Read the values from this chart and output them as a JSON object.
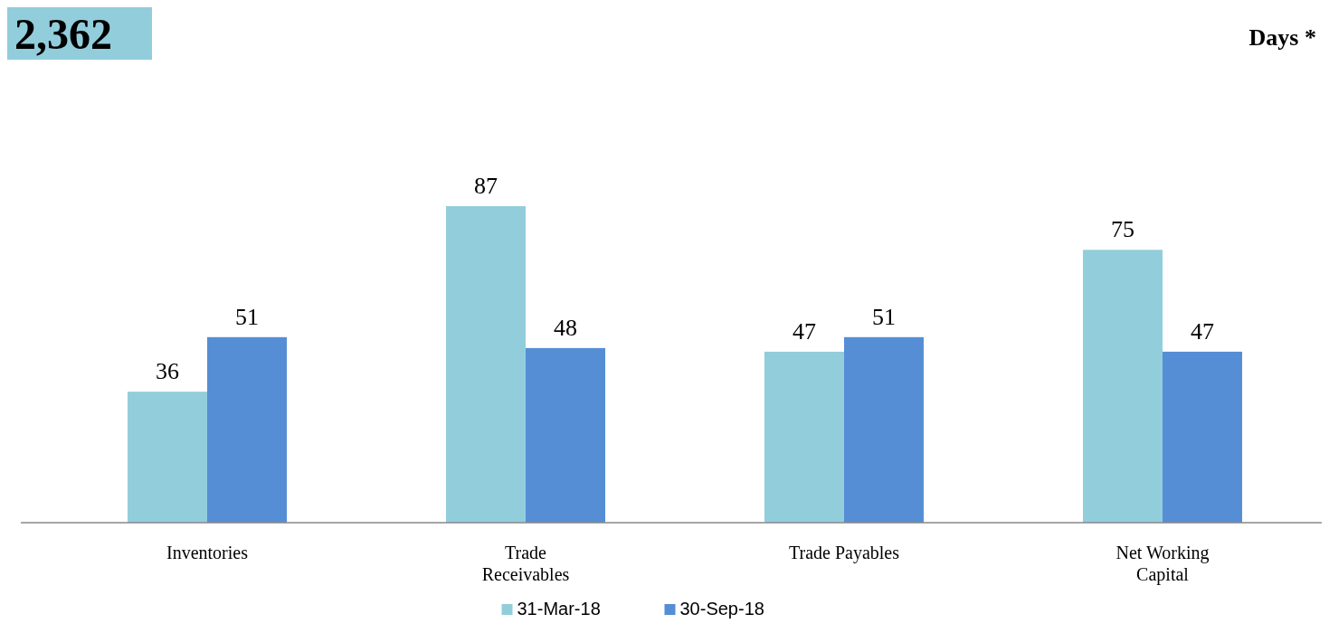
{
  "chart_data": {
    "type": "bar",
    "title": "2,362",
    "subtitle": "Days *",
    "categories": [
      "Inventories",
      "Trade Receivables",
      "Trade Payables",
      "Net Working Capital"
    ],
    "series": [
      {
        "name": "31-Mar-18",
        "color": "#92cddc",
        "values": [
          36,
          87,
          47,
          75
        ]
      },
      {
        "name": "30-Sep-18",
        "color": "#558ed5",
        "values": [
          51,
          48,
          51,
          47
        ]
      }
    ],
    "data_labels": true,
    "legend": "bottom"
  }
}
